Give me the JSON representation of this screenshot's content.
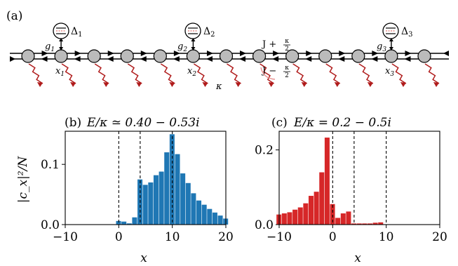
{
  "panel_a": {
    "label": "(a)",
    "site_count": 13,
    "emitters": [
      {
        "delta": "Δ",
        "delta_sub": "1",
        "g": "g",
        "g_sub": "1",
        "x": "x",
        "x_sub": "1"
      },
      {
        "delta": "Δ",
        "delta_sub": "2",
        "g": "g",
        "g_sub": "2",
        "x": "x",
        "x_sub": "2"
      },
      {
        "delta": "Δ",
        "delta_sub": "3",
        "g": "g",
        "g_sub": "3",
        "x": "x",
        "x_sub": "3"
      }
    ],
    "hop_plus_label": "J + κ/2",
    "hop_minus_label": "J − κ/2",
    "hop_plus_main": "J +",
    "hop_minus_main": "J −",
    "frac_num": "κ",
    "frac_den": "2",
    "kappa_label": "κ",
    "colors": {
      "site": "#bbbbbb",
      "loss": "#b01c1c",
      "emitter_dash": "#d9534f"
    }
  },
  "chart_data": [
    {
      "type": "bar",
      "panel_label": "(b)",
      "title": "(b)  E/κ ≃ 0.40 − 0.53i",
      "title_main": "E/κ ≃ 0.40 − 0.53i",
      "xlabel": "x",
      "ylabel": "|c_x|²/N",
      "xlim": [
        -10,
        20
      ],
      "ylim": [
        0,
        0.155
      ],
      "xticks": [
        "−10",
        "0",
        "10",
        "20"
      ],
      "yticks": [
        "0.0",
        "0.1"
      ],
      "ytick_values": [
        0.0,
        0.1
      ],
      "color": "#1f77b4",
      "vlines": [
        0,
        4,
        10
      ],
      "x": [
        0,
        1,
        2,
        3,
        4,
        5,
        6,
        7,
        8,
        9,
        10,
        11,
        12,
        13,
        14,
        15,
        16,
        17,
        18,
        19,
        20
      ],
      "values": [
        0.006,
        0.005,
        0.002,
        0.012,
        0.075,
        0.066,
        0.07,
        0.082,
        0.088,
        0.12,
        0.15,
        0.117,
        0.085,
        0.069,
        0.052,
        0.04,
        0.033,
        0.026,
        0.02,
        0.015,
        0.01
      ]
    },
    {
      "type": "bar",
      "panel_label": "(c)",
      "title": "(c)  E/κ = 0.2 − 0.5i",
      "title_main": "E/κ = 0.2 − 0.5i",
      "xlabel": "x",
      "xlim": [
        -10,
        20
      ],
      "ylim": [
        0,
        0.25
      ],
      "xticks": [
        "−10",
        "0",
        "10",
        "20"
      ],
      "yticks": [
        "0.0",
        "0.2"
      ],
      "ytick_values": [
        0.0,
        0.2
      ],
      "color": "#d62728",
      "vlines": [
        0,
        4,
        10
      ],
      "x": [
        -10,
        -9,
        -8,
        -7,
        -6,
        -5,
        -4,
        -3,
        -2,
        -1,
        0,
        1,
        2,
        3,
        4,
        5,
        6,
        7,
        8,
        9,
        10
      ],
      "values": [
        0.027,
        0.03,
        0.033,
        0.04,
        0.046,
        0.057,
        0.077,
        0.088,
        0.14,
        0.233,
        0.055,
        0.018,
        0.03,
        0.035,
        0.003,
        0.003,
        0.003,
        0.003,
        0.005,
        0.006,
        0.0
      ]
    }
  ]
}
